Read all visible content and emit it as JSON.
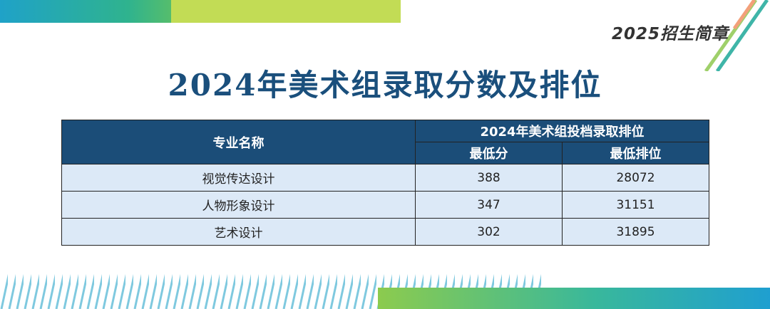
{
  "header": {
    "tag": "2025招生简章",
    "title": "2024年美术组录取分数及排位"
  },
  "table": {
    "col_major": "专业名称",
    "group_header": "2024年美术组投档录取排位",
    "col_min_score": "最低分",
    "col_min_rank": "最低排位",
    "rows": [
      {
        "major": "视觉传达设计",
        "min_score": "388",
        "min_rank": "28072"
      },
      {
        "major": "人物形象设计",
        "min_score": "347",
        "min_rank": "31151"
      },
      {
        "major": "艺术设计",
        "min_score": "302",
        "min_rank": "31895"
      }
    ]
  },
  "colors": {
    "title": "#1a4f7c",
    "header_bg": "#1b4d78",
    "row_bg": "#dce9f7",
    "accent_green": "#c2dc55",
    "accent_blue": "#1fa2c8"
  }
}
